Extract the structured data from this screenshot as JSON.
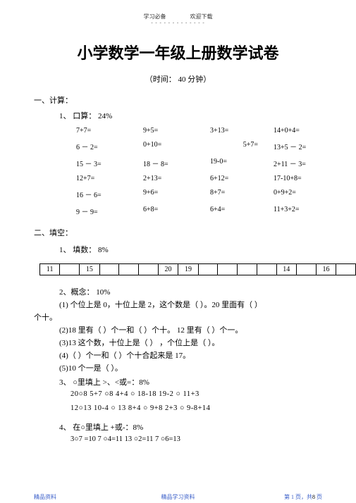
{
  "header": {
    "left": "学习必备",
    "right": "欢迎下载",
    "dash": "- - - - - - - - - - - - -"
  },
  "title": "小学数学一年级上册数学试卷",
  "subtitle": "（时间：  40 分钟）",
  "s1": {
    "head": "一、计算：",
    "sub": "1、  口算：  24%"
  },
  "calc": {
    "r1": {
      "a": "7+7=",
      "b": "9+5=",
      "c": "3+13=",
      "d": "14+0+4="
    },
    "r2": {
      "a": "6 － 2=",
      "b": "0+10=",
      "c": "5+7=",
      "d": "13+5 － 2="
    },
    "r3": {
      "a": "15 － 3=",
      "b": "18 － 8=",
      "c": "19-0=",
      "d": "2+11 －  3="
    },
    "r4": {
      "a": "12+7=",
      "b": "2+13=",
      "c": "6+12=",
      "d": "17-10+8="
    },
    "r5": {
      "a": "16 － 6=",
      "b": "9+6=",
      "c": "8+7=",
      "d": "0+9+2="
    },
    "r6": {
      "a": "9 － 9=",
      "b": "6+8=",
      "c": "6+4=",
      "d": "11+3+2="
    }
  },
  "s2": {
    "head": "二、填空：",
    "sub": "1、  填数：  8%"
  },
  "cells": [
    "11",
    "",
    "15",
    "",
    "",
    "",
    "20",
    "19",
    "",
    "",
    "",
    "",
    "14",
    "",
    "16",
    ""
  ],
  "concept": {
    "head": "2、概念：  10%",
    "q1a": "(1) 个位上是  0，十位上是  2，这个数是（         ）。20 里面有（         ）",
    "q1b": "个十。",
    "q2": "(2)18  里有（       ）个一和（       ）个十。 12 里有（        ）个一。",
    "q3": "(3)13  这个数，十位上是（            ） ，个位上是（         ）。",
    "q4": "(4)（        ）个一和（           ）个十合起来是  17。",
    "q5": "(5)10 个一是（        ）。"
  },
  "compare": {
    "head": "3、  ○里填上 >、<或=：8%",
    "row1": "20○8     5+7     ○8     4+4    ○ 18-18    19-2    ○ 11+3",
    "row2": "12○13    10-4    ○ 13    8+4    ○ 9+8     2+3     ○ 9-8+14"
  },
  "ops": {
    "head": "4、  在○里填上  +或-：8%",
    "row": "3○7 =10   7   ○4=11   13   ○2=11    7   ○6=13"
  },
  "footer": {
    "left": "精品资料",
    "center": "精品学习资料",
    "right_a": "第 1 页，共",
    "right_b": " 页",
    "right_n": "8"
  }
}
